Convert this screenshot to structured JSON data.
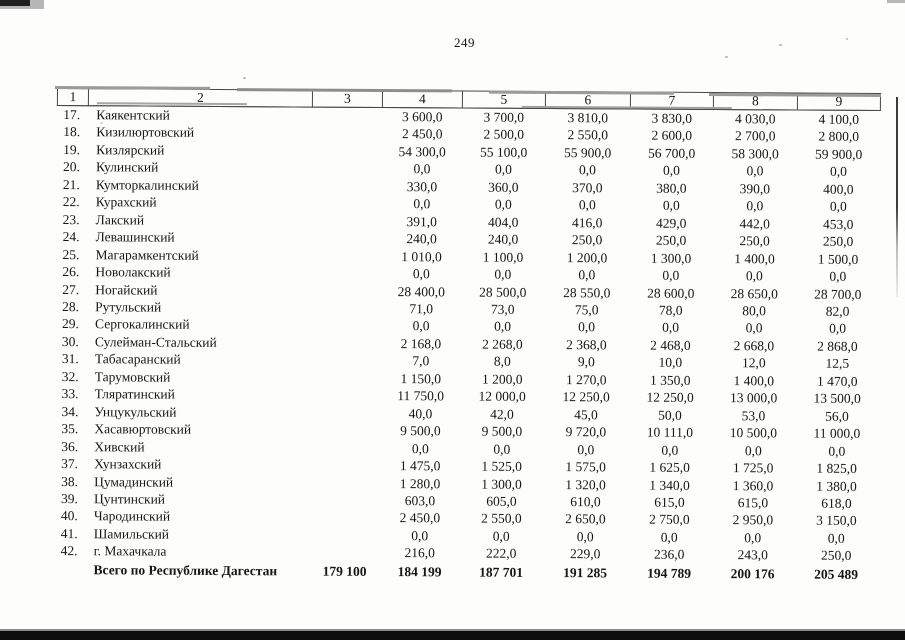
{
  "document": {
    "page_number": "249"
  },
  "table": {
    "column_headers": [
      "1",
      "2",
      "3",
      "4",
      "5",
      "6",
      "7",
      "8",
      "9"
    ],
    "rows": [
      {
        "n": "17.",
        "name": "Каякентский",
        "c3": "",
        "values": [
          "3 600,0",
          "3 700,0",
          "3 810,0",
          "3 830,0",
          "4 030,0",
          "4 100,0"
        ]
      },
      {
        "n": "18.",
        "name": "Кизилюртовский",
        "c3": "",
        "values": [
          "2 450,0",
          "2 500,0",
          "2 550,0",
          "2 600,0",
          "2 700,0",
          "2 800,0"
        ]
      },
      {
        "n": "19.",
        "name": "Кизлярский",
        "c3": "",
        "values": [
          "54 300,0",
          "55 100,0",
          "55 900,0",
          "56 700,0",
          "58 300,0",
          "59 900,0"
        ]
      },
      {
        "n": "20.",
        "name": "Кулинский",
        "c3": "",
        "values": [
          "0,0",
          "0,0",
          "0,0",
          "0,0",
          "0,0",
          "0,0"
        ]
      },
      {
        "n": "21.",
        "name": "Кумторкалинский",
        "c3": "",
        "values": [
          "330,0",
          "360,0",
          "370,0",
          "380,0",
          "390,0",
          "400,0"
        ]
      },
      {
        "n": "22.",
        "name": "Курахский",
        "c3": "",
        "values": [
          "0,0",
          "0,0",
          "0,0",
          "0,0",
          "0,0",
          "0,0"
        ]
      },
      {
        "n": "23.",
        "name": "Лакский",
        "c3": "",
        "values": [
          "391,0",
          "404,0",
          "416,0",
          "429,0",
          "442,0",
          "453,0"
        ]
      },
      {
        "n": "24.",
        "name": "Левашинский",
        "c3": "",
        "values": [
          "240,0",
          "240,0",
          "250,0",
          "250,0",
          "250,0",
          "250,0"
        ]
      },
      {
        "n": "25.",
        "name": "Магарамкентский",
        "c3": "",
        "values": [
          "1 010,0",
          "1 100,0",
          "1 200,0",
          "1 300,0",
          "1 400,0",
          "1 500,0"
        ]
      },
      {
        "n": "26.",
        "name": "Новолакский",
        "c3": "",
        "values": [
          "0,0",
          "0,0",
          "0,0",
          "0,0",
          "0,0",
          "0,0"
        ]
      },
      {
        "n": "27.",
        "name": "Ногайский",
        "c3": "",
        "values": [
          "28 400,0",
          "28 500,0",
          "28 550,0",
          "28 600,0",
          "28 650,0",
          "28 700,0"
        ]
      },
      {
        "n": "28.",
        "name": "Рутульский",
        "c3": "",
        "values": [
          "71,0",
          "73,0",
          "75,0",
          "78,0",
          "80,0",
          "82,0"
        ]
      },
      {
        "n": "29.",
        "name": "Сергокалинский",
        "c3": "",
        "values": [
          "0,0",
          "0,0",
          "0,0",
          "0,0",
          "0,0",
          "0,0"
        ]
      },
      {
        "n": "30.",
        "name": "Сулейман-Стальский",
        "c3": "",
        "values": [
          "2 168,0",
          "2 268,0",
          "2 368,0",
          "2 468,0",
          "2 668,0",
          "2 868,0"
        ]
      },
      {
        "n": "31.",
        "name": "Табасаранский",
        "c3": "",
        "values": [
          "7,0",
          "8,0",
          "9,0",
          "10,0",
          "12,0",
          "12,5"
        ]
      },
      {
        "n": "32.",
        "name": "Тарумовский",
        "c3": "",
        "values": [
          "1 150,0",
          "1 200,0",
          "1 270,0",
          "1 350,0",
          "1 400,0",
          "1 470,0"
        ]
      },
      {
        "n": "33.",
        "name": "Тляратинский",
        "c3": "",
        "values": [
          "11 750,0",
          "12 000,0",
          "12 250,0",
          "12 250,0",
          "13 000,0",
          "13 500,0"
        ]
      },
      {
        "n": "34.",
        "name": "Унцукульский",
        "c3": "",
        "values": [
          "40,0",
          "42,0",
          "45,0",
          "50,0",
          "53,0",
          "56,0"
        ]
      },
      {
        "n": "35.",
        "name": "Хасавюртовский",
        "c3": "",
        "values": [
          "9 500,0",
          "9 500,0",
          "9 720,0",
          "10 111,0",
          "10 500,0",
          "11 000,0"
        ]
      },
      {
        "n": "36.",
        "name": "Хивский",
        "c3": "",
        "values": [
          "0,0",
          "0,0",
          "0,0",
          "0,0",
          "0,0",
          "0,0"
        ]
      },
      {
        "n": "37.",
        "name": "Хунзахский",
        "c3": "",
        "values": [
          "1 475,0",
          "1 525,0",
          "1 575,0",
          "1 625,0",
          "1 725,0",
          "1 825,0"
        ]
      },
      {
        "n": "38.",
        "name": "Цумадинский",
        "c3": "",
        "values": [
          "1 280,0",
          "1 300,0",
          "1 320,0",
          "1 340,0",
          "1 360,0",
          "1 380,0"
        ]
      },
      {
        "n": "39.",
        "name": "Цунтинский",
        "c3": "",
        "values": [
          "603,0",
          "605,0",
          "610,0",
          "615,0",
          "615,0",
          "618,0"
        ]
      },
      {
        "n": "40.",
        "name": "Чародинский",
        "c3": "",
        "values": [
          "2 450,0",
          "2 550,0",
          "2 650,0",
          "2 750,0",
          "2 950,0",
          "3 150,0"
        ]
      },
      {
        "n": "41.",
        "name": "Шамильский",
        "c3": "",
        "values": [
          "0,0",
          "0,0",
          "0,0",
          "0,0",
          "0,0",
          "0,0"
        ]
      },
      {
        "n": "42.",
        "name": "г. Махачкала",
        "c3": "",
        "values": [
          "216,0",
          "222,0",
          "229,0",
          "236,0",
          "243,0",
          "250,0"
        ]
      }
    ],
    "total_row": {
      "label": "Всего по Республике Дагестан",
      "c3": "179 100",
      "values": [
        "184 199",
        "187 701",
        "191 285",
        "194 789",
        "200 176",
        "205 489"
      ]
    }
  }
}
